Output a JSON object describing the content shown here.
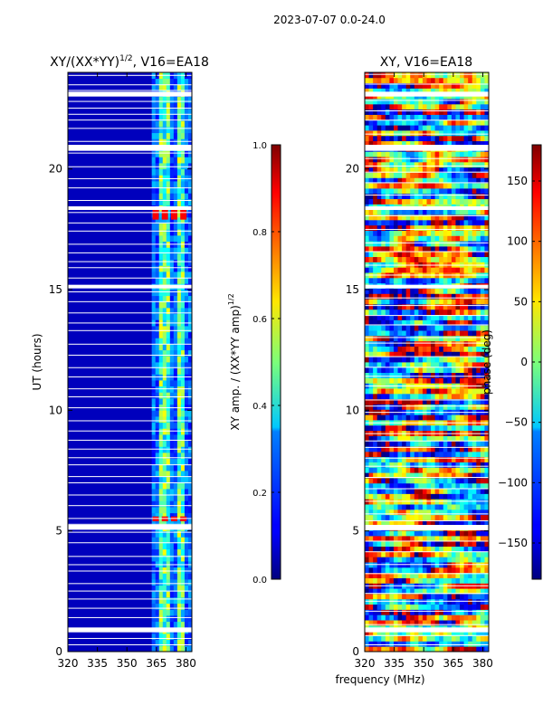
{
  "suptitle": "2023-07-07 0.0-24.0",
  "colors": {
    "background": "#ffffff",
    "frame": "#000000",
    "gap": "#ffffff"
  },
  "chart_data": [
    {
      "type": "heatmap",
      "title": "XY/(XX*YY)^1/2, V16=EA18",
      "title_main": "XY/(XX*YY)",
      "title_sup": "1/2",
      "title_tail": ", V16=EA18",
      "xlabel": "",
      "ylabel": "UT (hours)",
      "xlim": [
        320,
        383
      ],
      "ylim": [
        0,
        24
      ],
      "xticks": [
        320,
        335,
        350,
        365,
        380
      ],
      "yticks": [
        0,
        5,
        10,
        15,
        20
      ],
      "colormap": "jet",
      "colorbar": {
        "label": "XY amp. / (XX*YY amp)^1/2",
        "label_main": "XY amp. / (XX*YY amp)",
        "label_sup": "1/2",
        "range": [
          0.0,
          1.0
        ],
        "ticks": [
          0.0,
          0.2,
          0.4,
          0.6,
          0.8,
          1.0
        ],
        "tick_labels": [
          "0.0",
          "0.2",
          "0.4",
          "0.6",
          "0.8",
          "1.0"
        ]
      },
      "gaps_hours": [
        [
          0.8,
          1.0
        ],
        [
          5.05,
          5.25
        ],
        [
          15.05,
          15.2
        ],
        [
          18.3,
          18.45
        ],
        [
          20.75,
          21.0
        ],
        [
          23.0,
          23.2
        ]
      ],
      "hot_spots_hours": [
        [
          17.9,
          18.3
        ],
        [
          5.4,
          5.6
        ]
      ]
    },
    {
      "type": "heatmap",
      "title": "XY, V16=EA18",
      "xlabel": "frequency (MHz)",
      "ylabel": "",
      "xlim": [
        320,
        383
      ],
      "ylim": [
        0,
        24
      ],
      "xticks": [
        320,
        335,
        350,
        365,
        380
      ],
      "yticks": [
        0,
        5,
        10,
        15,
        20
      ],
      "colormap": "jet",
      "colorbar": {
        "label": "phase (deg)",
        "range": [
          -180,
          180
        ],
        "ticks": [
          -150,
          -100,
          -50,
          0,
          50,
          100,
          150
        ],
        "tick_labels": [
          "−150",
          "−100",
          "−50",
          "0",
          "50",
          "100",
          "150"
        ]
      },
      "gaps_hours": [
        [
          0.8,
          1.0
        ],
        [
          5.05,
          5.25
        ],
        [
          15.05,
          15.2
        ],
        [
          18.3,
          18.45
        ],
        [
          20.75,
          21.0
        ],
        [
          23.0,
          23.2
        ]
      ]
    }
  ]
}
